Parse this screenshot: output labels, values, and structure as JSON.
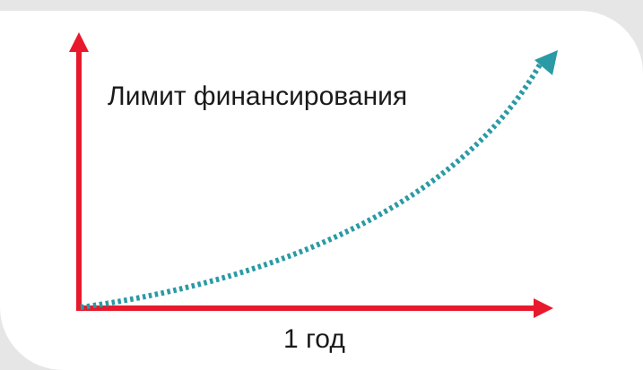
{
  "diagram": {
    "y_label": "Лимит финансирования",
    "x_label": "1 год",
    "colors": {
      "axis": "#e8192c",
      "curve": "#2a9aa5",
      "label": "#1a1a1a",
      "panel": "#ffffff",
      "background": "#e6e6e6"
    },
    "curve_style": "dotted",
    "icons": [
      "y-axis-arrowhead-icon",
      "x-axis-arrowhead-icon",
      "curve-arrowhead-icon"
    ]
  }
}
